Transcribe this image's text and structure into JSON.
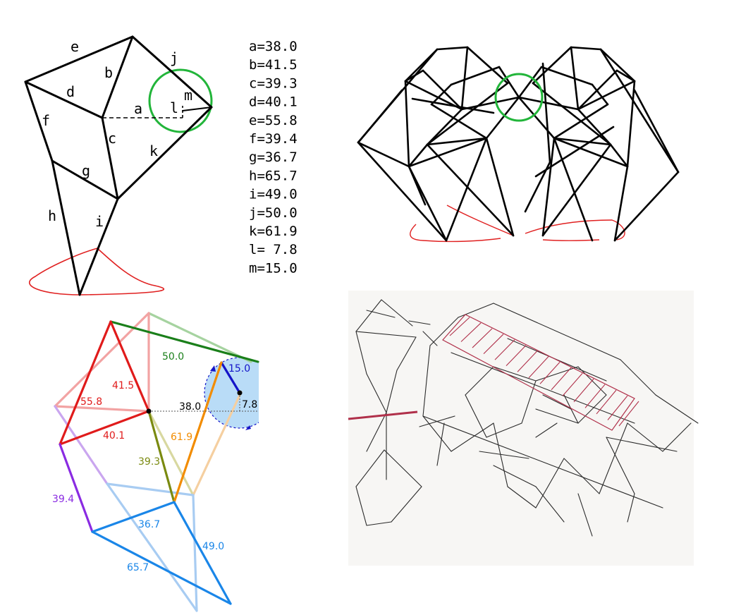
{
  "panel1": {
    "edge_labels": {
      "a": "a",
      "b": "b",
      "c": "c",
      "d": "d",
      "e": "e",
      "f": "f",
      "g": "g",
      "h": "h",
      "i": "i",
      "j": "j",
      "k": "k",
      "l": "l",
      "m": "m"
    },
    "lengths": [
      "a=38.0",
      "b=41.5",
      "c=39.3",
      "d=40.1",
      "e=55.8",
      "f=39.4",
      "g=36.7",
      "h=65.7",
      "i=49.0",
      "j=50.0",
      "k=61.9",
      "l= 7.8",
      "m=15.0"
    ]
  },
  "panel3": {
    "labels": {
      "j": "50.0",
      "m": "15.0",
      "b": "41.5",
      "e": "55.8",
      "a": "38.0",
      "l": "7.8",
      "d": "40.1",
      "k": "61.9",
      "c": "39.3",
      "f": "39.4",
      "g": "36.7",
      "i": "49.0",
      "h": "65.7"
    }
  },
  "colors": {
    "link": "#000000",
    "crank_circle": "#22b53a",
    "foot_path": "#e02020",
    "red": "#e01b1b",
    "green": "#1a7f1a",
    "blue": "#1414c8",
    "orange": "#f28c00",
    "olive": "#7a8a10",
    "purple": "#8a2be2",
    "azure": "#1a86e8",
    "crank_fill": "#b9dcf7"
  }
}
